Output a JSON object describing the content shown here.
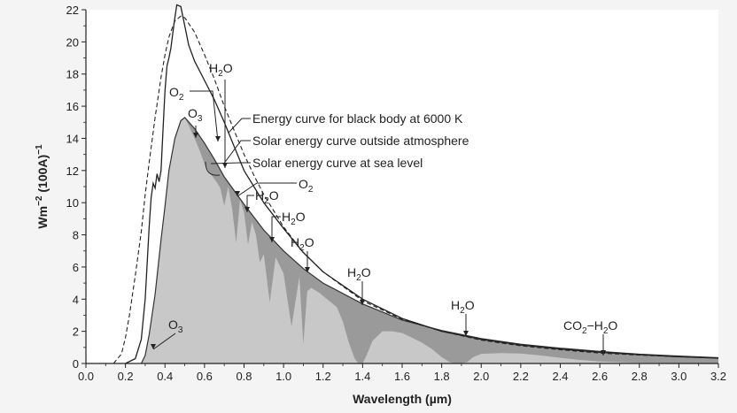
{
  "chart_data": {
    "type": "line",
    "xlabel": "Wavelength",
    "xlabel_unit": "(µm)",
    "ylabel": "Wm",
    "ylabel_sup": "−2",
    "ylabel_mid": " (100A)",
    "ylabel_sup2": "−1",
    "xlim": [
      0,
      3.2
    ],
    "ylim": [
      0,
      22
    ],
    "x_ticks": [
      "0.0",
      "0.2",
      "0.4",
      "0.6",
      "0.8",
      "1.0",
      "1.2",
      "1.4",
      "1.6",
      "1.8",
      "2.0",
      "2.2",
      "2.4",
      "2.6",
      "2.8",
      "3.0",
      "3.2"
    ],
    "y_ticks": [
      "0",
      "2",
      "4",
      "6",
      "8",
      "10",
      "12",
      "14",
      "16",
      "18",
      "20",
      "22"
    ],
    "grid": false,
    "legend": [
      {
        "text": "Energy curve for black body at 6000 K"
      },
      {
        "text": "Solar energy curve outside atmosphere"
      },
      {
        "text": "Solar energy curve at sea level"
      }
    ],
    "series": [
      {
        "style": "dashed",
        "x": [
          0.14,
          0.18,
          0.2,
          0.22,
          0.25,
          0.28,
          0.3,
          0.32,
          0.35,
          0.38,
          0.4,
          0.42,
          0.45,
          0.48,
          0.5,
          0.55,
          0.6,
          0.65,
          0.7,
          0.75,
          0.8,
          0.85,
          0.9,
          1.0,
          1.1,
          1.2,
          1.4,
          1.6,
          1.8,
          2.0,
          2.2,
          2.4,
          2.6,
          2.8,
          3.0,
          3.2
        ],
        "y": [
          0,
          0.6,
          1.6,
          3.0,
          5.5,
          8.2,
          10.5,
          12.5,
          15.3,
          17.8,
          19.2,
          20.3,
          21.3,
          21.6,
          21.5,
          20.6,
          19.2,
          17.7,
          16.0,
          14.5,
          13.0,
          11.7,
          10.5,
          8.5,
          6.9,
          5.7,
          3.9,
          2.75,
          2.0,
          1.45,
          1.1,
          0.85,
          0.65,
          0.52,
          0.42,
          0.34
        ]
      },
      {
        "style": "solid",
        "x": [
          0.2,
          0.25,
          0.28,
          0.3,
          0.32,
          0.33,
          0.34,
          0.35,
          0.36,
          0.37,
          0.38,
          0.39,
          0.4,
          0.41,
          0.42,
          0.43,
          0.44,
          0.45,
          0.46,
          0.48,
          0.5,
          0.52,
          0.55,
          0.6,
          0.65,
          0.7,
          0.75,
          0.8,
          0.9,
          1.0,
          1.1,
          1.2,
          1.4,
          1.6,
          1.8,
          2.0,
          2.2,
          2.4,
          2.6,
          2.8,
          3.0,
          3.2
        ],
        "y": [
          0,
          0.3,
          1.5,
          4.0,
          8.5,
          10.3,
          11.2,
          10.9,
          11.8,
          11.3,
          12.0,
          14.5,
          17.0,
          18.5,
          19.0,
          19.6,
          20.6,
          21.5,
          22.3,
          22.2,
          21.0,
          19.8,
          18.8,
          17.6,
          16.4,
          15.0,
          13.5,
          12.0,
          10.0,
          8.4,
          6.9,
          5.7,
          4.0,
          2.8,
          2.0,
          1.5,
          1.15,
          0.9,
          0.7,
          0.55,
          0.42,
          0.33
        ]
      },
      {
        "style": "filled",
        "x": [
          0.28,
          0.3,
          0.32,
          0.35,
          0.38,
          0.4,
          0.42,
          0.45,
          0.48,
          0.5,
          0.52,
          0.55,
          0.58,
          0.6,
          0.63,
          0.66,
          0.68,
          0.7,
          0.72,
          0.74,
          0.76,
          0.78,
          0.8,
          0.82,
          0.84,
          0.86,
          0.88,
          0.9,
          0.93,
          0.96,
          1.0,
          1.04,
          1.08,
          1.1,
          1.12,
          1.14,
          1.18,
          1.22,
          1.27,
          1.3,
          1.33,
          1.36,
          1.38,
          1.4,
          1.42,
          1.45,
          1.5,
          1.55,
          1.6,
          1.65,
          1.7,
          1.75,
          1.8,
          1.84,
          1.87,
          1.9,
          1.93,
          1.96,
          2.0,
          2.1,
          2.2,
          2.3,
          2.4,
          2.5,
          2.6,
          2.7,
          2.8,
          2.9,
          3.0,
          3.1,
          3.2
        ],
        "y": [
          0,
          0.5,
          1.8,
          4.3,
          7.7,
          9.8,
          12.0,
          14.0,
          15.1,
          15.3,
          14.8,
          14.0,
          13.1,
          12.4,
          11.8,
          11.3,
          10.9,
          9.8,
          11.0,
          9.6,
          7.5,
          10.2,
          9.4,
          7.4,
          8.8,
          8.0,
          6.3,
          6.8,
          3.8,
          6.6,
          5.6,
          2.3,
          5.4,
          1.2,
          4.5,
          4.7,
          4.4,
          4.0,
          3.5,
          2.6,
          1.3,
          0.3,
          0,
          0,
          0.5,
          1.4,
          2.0,
          2.0,
          1.9,
          1.6,
          1.3,
          0.9,
          0.4,
          0.08,
          0,
          0,
          0.1,
          0.4,
          0.6,
          0.65,
          0.62,
          0.5,
          0.35,
          0.22,
          0.12,
          0.08,
          0.05,
          0.04,
          0.03,
          0.02,
          0.02
        ]
      }
    ],
    "annotations": [
      {
        "text": "O",
        "sub": "2"
      },
      {
        "text": "H",
        "sub": "2",
        "post": "O"
      },
      {
        "text": "O",
        "sub": "3"
      },
      {
        "text": "O",
        "sub": "2"
      },
      {
        "text": "H",
        "sub": "2",
        "post": "O"
      },
      {
        "text": "H",
        "sub": "2",
        "post": "O"
      },
      {
        "text": "H",
        "sub": "2",
        "post": "O"
      },
      {
        "text": "H",
        "sub": "2",
        "post": "O"
      },
      {
        "text": "H",
        "sub": "2",
        "post": "O"
      },
      {
        "text": "O",
        "sub": "3"
      },
      {
        "text": "CO",
        "sub": "2",
        "post": "−H",
        "sub2": "2",
        "post2": "O"
      }
    ]
  },
  "colors": {
    "background": "#f4f4f4",
    "plot_background": "#ffffff",
    "sea_level_fill": "#c8c8c8",
    "absorption_fill": "#9a9a9a",
    "line": "#222222"
  }
}
